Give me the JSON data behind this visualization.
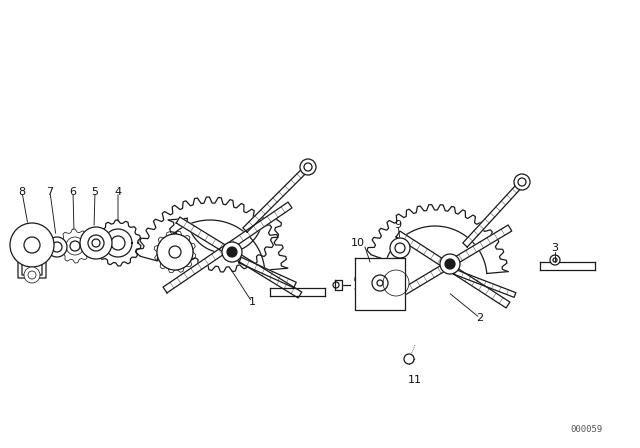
{
  "background_color": "#ffffff",
  "figure_width": 6.4,
  "figure_height": 4.48,
  "dpi": 100,
  "catalog_number": "000059",
  "line_color": "#1a1a1a",
  "text_color": "#111111",
  "label_fontsize": 8,
  "catalog_fontsize": 6.5,
  "lw_main": 0.9,
  "lw_thick": 1.4,
  "lw_thin": 0.55
}
